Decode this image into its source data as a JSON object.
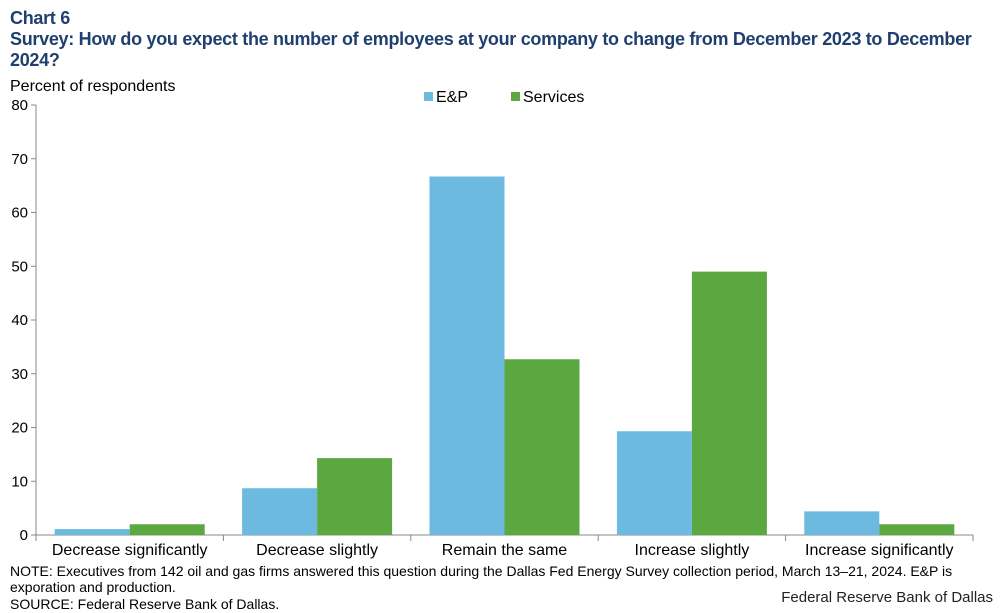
{
  "header": {
    "chart_number": "Chart 6",
    "title": "Survey: How do you expect the number of employees at your company to change from December 2023 to December 2024?"
  },
  "footer": {
    "note": "NOTE: Executives from 142 oil and gas firms answered this question during the Dallas Fed Energy Survey collection period, March 13–21, 2024. E&P is exporation and production.",
    "source": "SOURCE: Federal Reserve Bank of Dallas.",
    "credit": "Federal Reserve Bank of Dallas"
  },
  "colors": {
    "ep": "#6cbae0",
    "services": "#5aa83f"
  },
  "chart_data": {
    "type": "bar",
    "title": "Survey: How do you expect the number of employees at your company to change from December 2023 to December 2024?",
    "xlabel": "",
    "ylabel": "Percent of respondents",
    "ylim": [
      0,
      80
    ],
    "yticks": [
      0,
      10,
      20,
      30,
      40,
      50,
      60,
      70,
      80
    ],
    "grid": false,
    "legend_position": "top-center",
    "categories": [
      "Decrease significantly",
      "Decrease slightly",
      "Remain the same",
      "Increase slightly",
      "Increase significantly"
    ],
    "series": [
      {
        "name": "E&P",
        "values": [
          1.1,
          8.7,
          66.7,
          19.3,
          4.4
        ]
      },
      {
        "name": "Services",
        "values": [
          2.0,
          14.3,
          32.7,
          49.0,
          2.0
        ]
      }
    ]
  }
}
